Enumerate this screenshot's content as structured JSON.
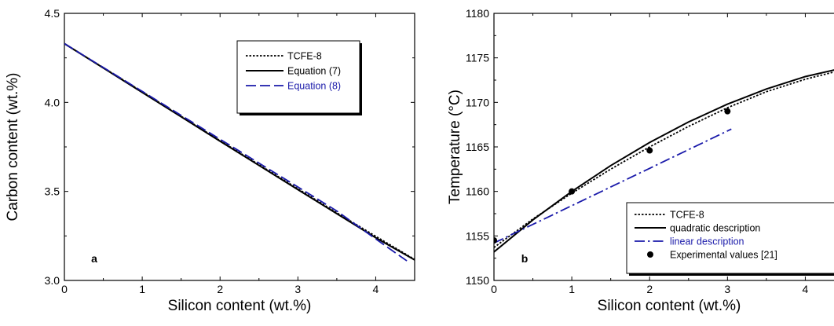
{
  "chart_data": [
    {
      "type": "line",
      "panel_label": "a",
      "xlabel": "Silicon content (wt.%)",
      "ylabel": "Carbon content (wt.%)",
      "xlim": [
        0,
        4.5
      ],
      "ylim": [
        3.0,
        4.5
      ],
      "xticks": [
        {
          "value": 0,
          "label": "0"
        },
        {
          "value": 1,
          "label": "1"
        },
        {
          "value": 2,
          "label": "2"
        },
        {
          "value": 3,
          "label": "3"
        },
        {
          "value": 4,
          "label": "4"
        }
      ],
      "yticks": [
        {
          "value": 3.0,
          "label": "3.0"
        },
        {
          "value": 3.5,
          "label": "3.5"
        },
        {
          "value": 4.0,
          "label": "4.0"
        },
        {
          "value": 4.5,
          "label": "4.5"
        }
      ],
      "grid": false,
      "legend_position": "top-right",
      "series": [
        {
          "name": "TCFE-8",
          "style": "dotted",
          "color": "#000000",
          "x": [
            0,
            0.5,
            1,
            1.5,
            2,
            2.5,
            3,
            3.5,
            4,
            4.5
          ],
          "y": [
            4.33,
            4.195,
            4.06,
            3.922,
            3.785,
            3.65,
            3.515,
            3.38,
            3.248,
            3.118
          ]
        },
        {
          "name": "Equation (7)",
          "style": "solid",
          "color": "#000000",
          "x": [
            0,
            0.5,
            1,
            1.5,
            2,
            2.5,
            3,
            3.5,
            4,
            4.5
          ],
          "y": [
            4.33,
            4.193,
            4.056,
            3.919,
            3.782,
            3.646,
            3.51,
            3.375,
            3.24,
            3.115
          ]
        },
        {
          "name": "Equation (8)",
          "style": "dashed",
          "color": "#1a1aaa",
          "x": [
            0,
            0.5,
            1,
            1.5,
            2,
            2.5,
            3,
            3.5,
            4,
            4.4
          ],
          "y": [
            4.33,
            4.196,
            4.062,
            3.927,
            3.793,
            3.659,
            3.525,
            3.39,
            3.233,
            3.11
          ]
        }
      ]
    },
    {
      "type": "line",
      "panel_label": "b",
      "xlabel": "Silicon content (wt.%)",
      "ylabel": "Temperature (°C)",
      "xlim": [
        0,
        4.5
      ],
      "ylim": [
        1150,
        1180
      ],
      "xticks": [
        {
          "value": 0,
          "label": "0"
        },
        {
          "value": 1,
          "label": "1"
        },
        {
          "value": 2,
          "label": "2"
        },
        {
          "value": 3,
          "label": "3"
        },
        {
          "value": 4,
          "label": "4"
        }
      ],
      "yticks": [
        {
          "value": 1150,
          "label": "1150"
        },
        {
          "value": 1155,
          "label": "1155"
        },
        {
          "value": 1160,
          "label": "1160"
        },
        {
          "value": 1165,
          "label": "1165"
        },
        {
          "value": 1170,
          "label": "1170"
        },
        {
          "value": 1175,
          "label": "1175"
        },
        {
          "value": 1180,
          "label": "1180"
        }
      ],
      "grid": false,
      "legend_position": "bottom-right",
      "series": [
        {
          "name": "TCFE-8",
          "style": "dotted",
          "color": "#000000",
          "x": [
            0,
            0.5,
            1,
            1.5,
            2,
            2.5,
            3,
            3.5,
            4,
            4.5
          ],
          "y": [
            1153.7,
            1156.9,
            1159.8,
            1162.5,
            1165.0,
            1167.3,
            1169.4,
            1171.2,
            1172.6,
            1173.7
          ]
        },
        {
          "name": "quadratic description",
          "style": "solid",
          "color": "#000000",
          "x": [
            0,
            0.5,
            1,
            1.5,
            2,
            2.5,
            3,
            3.5,
            4,
            4.5
          ],
          "y": [
            1153.2,
            1156.8,
            1160.0,
            1162.9,
            1165.5,
            1167.8,
            1169.8,
            1171.5,
            1172.9,
            1173.9
          ]
        },
        {
          "name": "linear description",
          "style": "dashdot",
          "color": "#1a1aaa",
          "x": [
            0,
            3.05
          ],
          "y": [
            1154.2,
            1167.0
          ]
        },
        {
          "name": "Experimental values [21]",
          "style": "marker",
          "color": "#000000",
          "x": [
            0,
            1,
            2,
            3
          ],
          "y": [
            1154.5,
            1160.0,
            1164.6,
            1169.0
          ]
        }
      ]
    }
  ]
}
